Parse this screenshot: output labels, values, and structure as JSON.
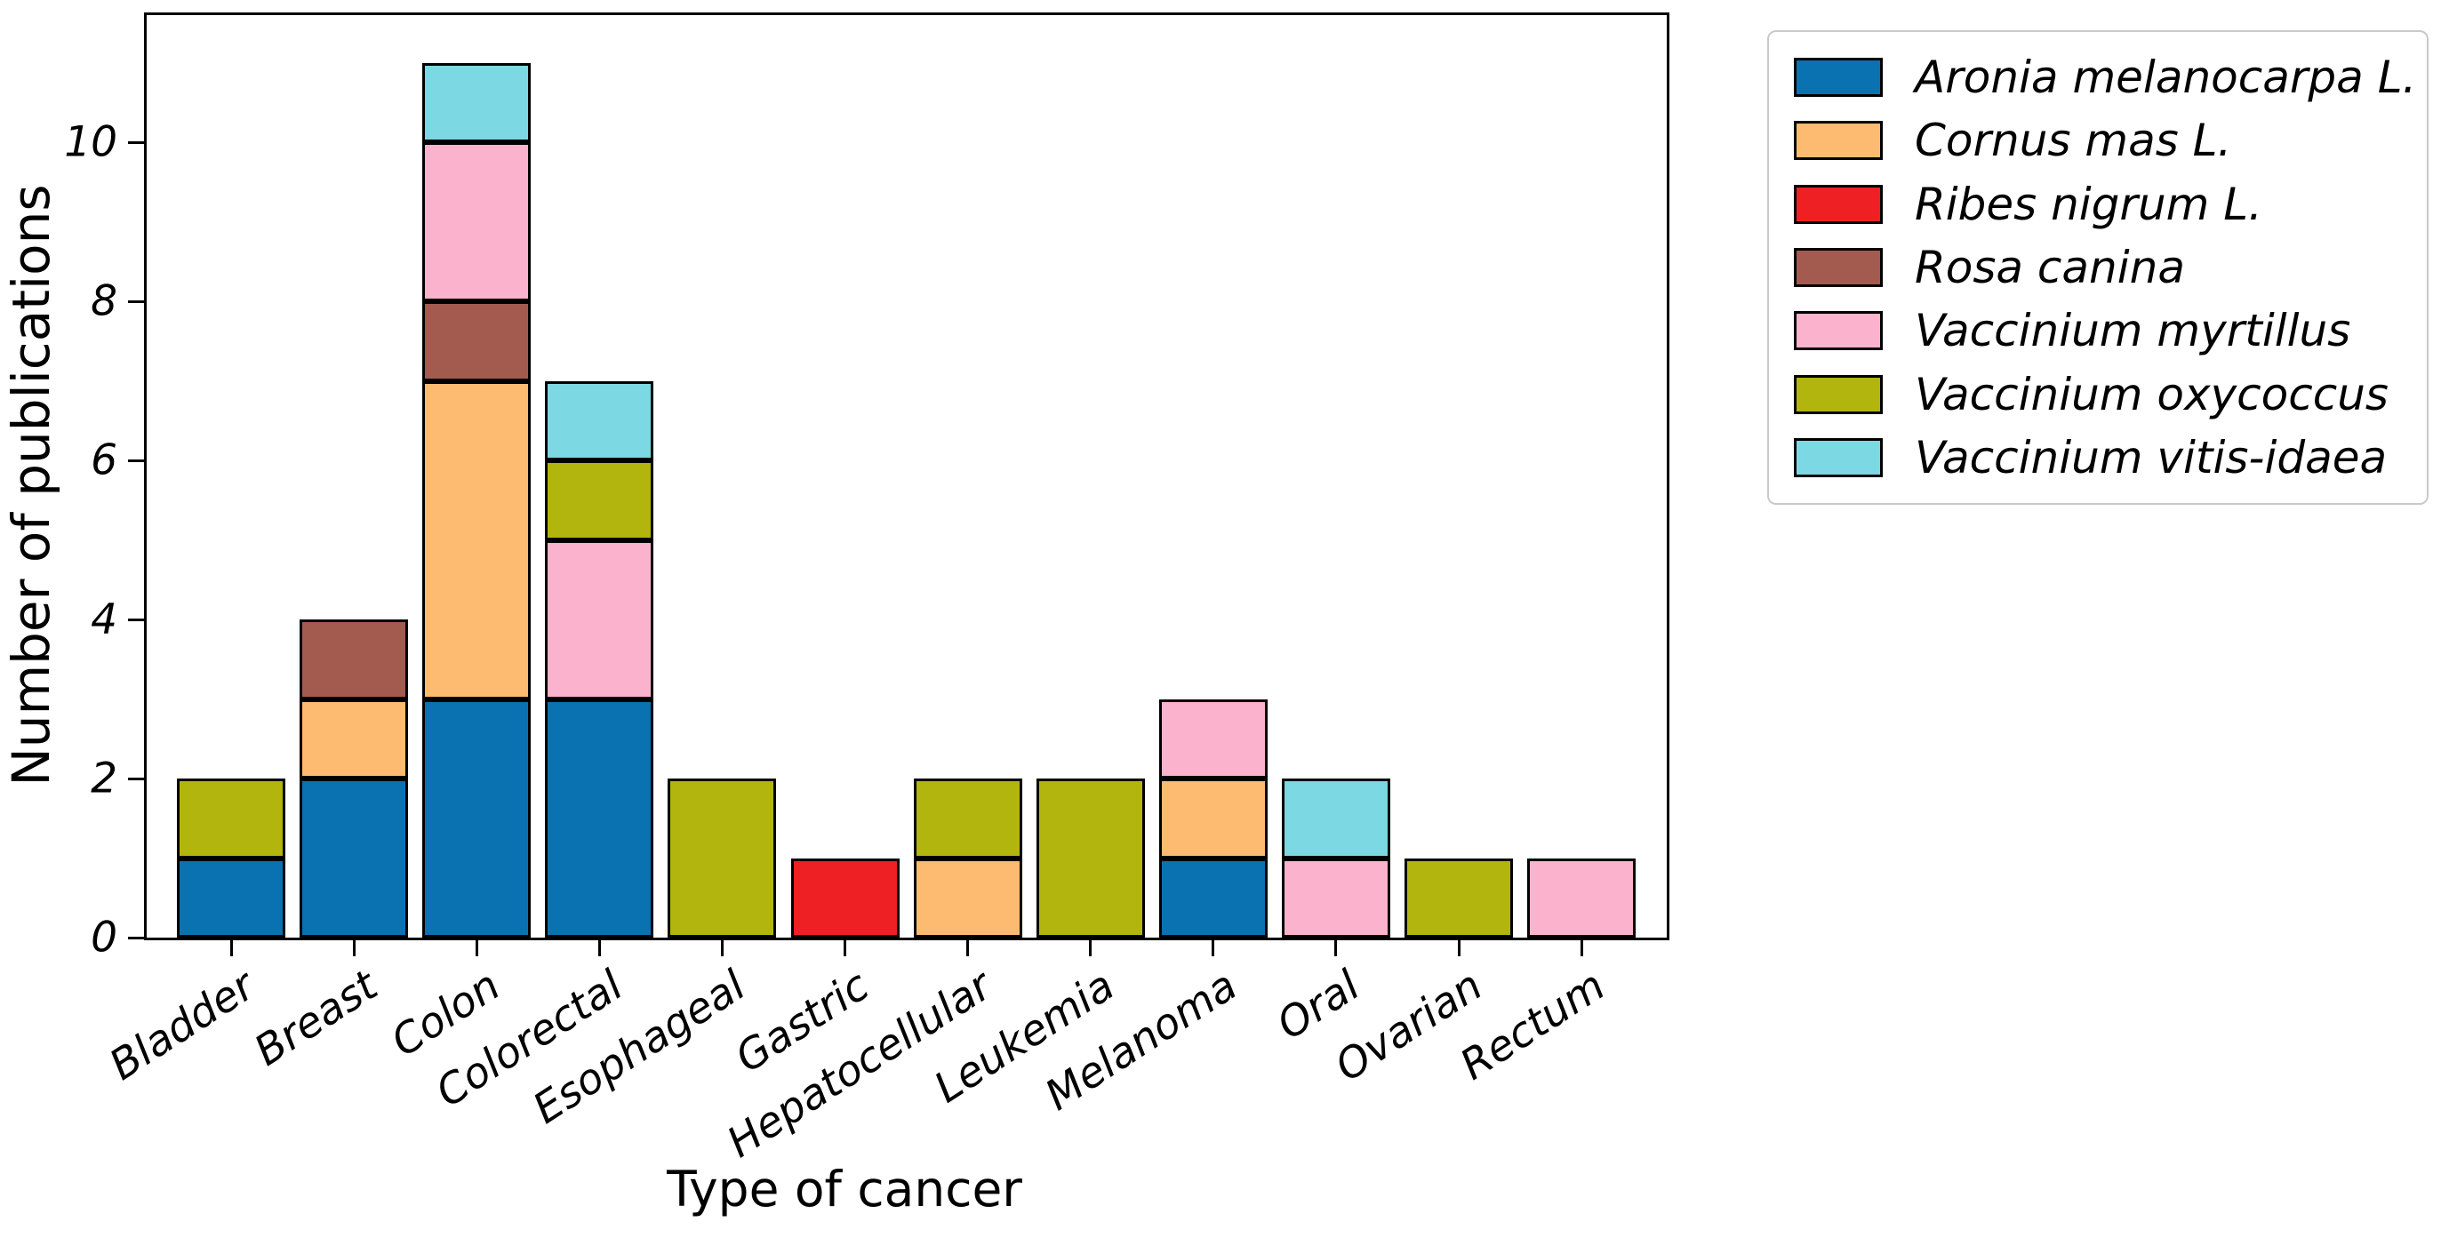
{
  "chart_data": {
    "type": "bar",
    "stacked": true,
    "title": "",
    "xlabel": "Type of cancer",
    "ylabel": "Number of publications",
    "categories": [
      "Bladder",
      "Breast",
      "Colon",
      "Colorectal",
      "Esophageal",
      "Gastric",
      "Hepatocellular",
      "Leukemia",
      "Melanoma",
      "Oral",
      "Ovarian",
      "Rectum"
    ],
    "series": [
      {
        "name": "Aronia melanocarpa L.",
        "color": "#0b72b1",
        "values": [
          1,
          2,
          3,
          3,
          0,
          0,
          0,
          0,
          1,
          0,
          0,
          0
        ]
      },
      {
        "name": "Cornus mas L.",
        "color": "#fcbb70",
        "values": [
          0,
          1,
          4,
          0,
          0,
          0,
          1,
          0,
          1,
          0,
          0,
          0
        ]
      },
      {
        "name": "Ribes nigrum L.",
        "color": "#ee2024",
        "values": [
          0,
          0,
          0,
          0,
          0,
          1,
          0,
          0,
          0,
          0,
          0,
          0
        ]
      },
      {
        "name": "Rosa canina",
        "color": "#a35b50",
        "values": [
          0,
          1,
          1,
          0,
          0,
          0,
          0,
          0,
          0,
          0,
          0,
          0
        ]
      },
      {
        "name": "Vaccinium myrtillus",
        "color": "#fbb2cc",
        "values": [
          0,
          0,
          2,
          2,
          0,
          0,
          0,
          0,
          1,
          1,
          0,
          1
        ]
      },
      {
        "name": "Vaccinium oxycoccus",
        "color": "#b3b50f",
        "values": [
          1,
          0,
          0,
          1,
          2,
          0,
          1,
          2,
          0,
          0,
          1,
          0
        ]
      },
      {
        "name": "Vaccinium vitis-idaea",
        "color": "#7cd8e2",
        "values": [
          0,
          0,
          1,
          1,
          0,
          0,
          0,
          0,
          0,
          1,
          0,
          0
        ]
      }
    ],
    "category_totals": [
      2,
      4,
      11,
      7,
      2,
      1,
      2,
      2,
      3,
      2,
      1,
      1
    ],
    "yticks": [
      0,
      2,
      4,
      6,
      8,
      10
    ],
    "ylim": [
      0,
      11.6
    ],
    "grid": false,
    "bar_edge_color": "#000000",
    "legend_position": "upper-right-outside"
  }
}
